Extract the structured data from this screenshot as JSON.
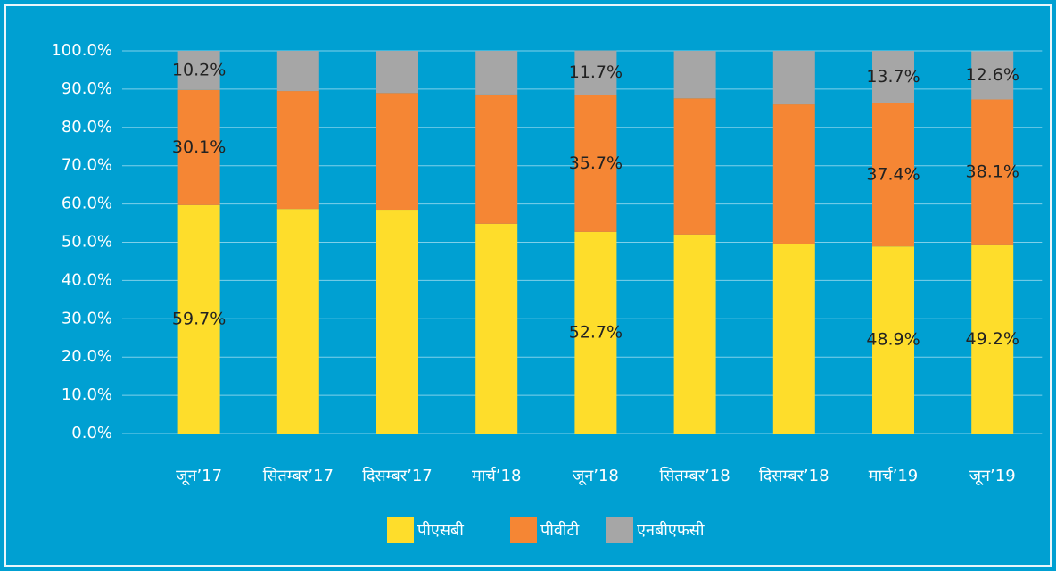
{
  "chart_data": {
    "type": "stacked_bar",
    "categories": [
      "जून’17",
      "सितम्बर’17",
      "दिसम्बर’17",
      "मार्च’18",
      "जून’18",
      "सितम्बर’18",
      "दिसम्बर’18",
      "मार्च’19",
      "जून’19"
    ],
    "series": [
      {
        "name": "पीएसबी",
        "color": "#fedd2b",
        "values": [
          59.7,
          58.7,
          58.5,
          54.8,
          52.7,
          52.0,
          49.6,
          48.9,
          49.2
        ],
        "value_labels": [
          "59.7%",
          null,
          null,
          null,
          "52.7%",
          null,
          null,
          "48.9%",
          "49.2%"
        ]
      },
      {
        "name": "पीवीटी",
        "color": "#f58634",
        "values": [
          30.1,
          30.8,
          30.5,
          33.8,
          35.7,
          35.6,
          36.4,
          37.4,
          38.1
        ],
        "value_labels": [
          "30.1%",
          null,
          null,
          null,
          "35.7%",
          null,
          null,
          "37.4%",
          "38.1%"
        ]
      },
      {
        "name": "एनबीएफसी",
        "color": "#a6a6a6",
        "values": [
          10.2,
          10.5,
          11.0,
          11.4,
          11.7,
          12.4,
          14.0,
          13.7,
          12.6
        ],
        "value_labels": [
          "10.2%",
          null,
          null,
          null,
          "11.7%",
          null,
          null,
          "13.7%",
          "12.6%"
        ]
      }
    ],
    "ylim": [
      0,
      100
    ],
    "yticks": [
      {
        "value": 0,
        "label": "0.0%"
      },
      {
        "value": 10,
        "label": "10.0%"
      },
      {
        "value": 20,
        "label": "20.0%"
      },
      {
        "value": 30,
        "label": "30.0%"
      },
      {
        "value": 40,
        "label": "40.0%"
      },
      {
        "value": 50,
        "label": "50.0%"
      },
      {
        "value": 60,
        "label": "60.0%"
      },
      {
        "value": 70,
        "label": "70.0%"
      },
      {
        "value": 80,
        "label": "80.0%"
      },
      {
        "value": 90,
        "label": "90.0%"
      },
      {
        "value": 100,
        "label": "100.0%"
      }
    ],
    "grid": true,
    "legend": "bottom"
  }
}
